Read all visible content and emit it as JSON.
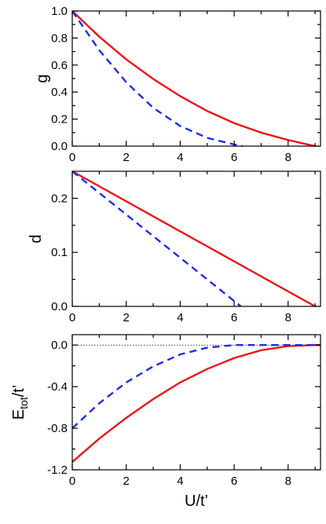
{
  "chart_data": [
    {
      "type": "line",
      "panel": "top",
      "xlabel": "",
      "ylabel": "g",
      "xlim": [
        0,
        9.2
      ],
      "ylim": [
        0,
        1.0
      ],
      "xticks": [
        0,
        2,
        4,
        6,
        8
      ],
      "xtick_labels": [
        "0",
        "2",
        "4",
        "6",
        "8"
      ],
      "yticks": [
        0,
        0.2,
        0.4,
        0.6,
        0.8,
        1.0
      ],
      "ytick_labels": [
        "0.0",
        "0.2",
        "0.4",
        "0.6",
        "0.8",
        "1.0"
      ],
      "legend": "none",
      "series": [
        {
          "color": "#e8141c",
          "style": "solid",
          "x": [
            0,
            1,
            2,
            3,
            4,
            5,
            6,
            7,
            8,
            9
          ],
          "y": [
            1.0,
            0.81,
            0.642,
            0.497,
            0.37,
            0.26,
            0.17,
            0.1,
            0.045,
            0.0
          ]
        },
        {
          "color": "#1c2ee0",
          "style": "dashed",
          "x": [
            0,
            1,
            2,
            3,
            4,
            5,
            6,
            6.3
          ],
          "y": [
            1.0,
            0.71,
            0.473,
            0.283,
            0.149,
            0.061,
            0.012,
            0.0
          ]
        }
      ]
    },
    {
      "type": "line",
      "panel": "middle",
      "xlabel": "",
      "ylabel": "d",
      "xlim": [
        0,
        9.2
      ],
      "ylim": [
        0,
        0.25
      ],
      "xticks": [
        0,
        2,
        4,
        6,
        8
      ],
      "xtick_labels": [
        "0",
        "2",
        "4",
        "6",
        "8"
      ],
      "yticks": [
        0,
        0.1,
        0.2
      ],
      "ytick_labels": [
        "0.0",
        "0.1",
        "0.2"
      ],
      "legend": "none",
      "series": [
        {
          "color": "#e8141c",
          "style": "solid",
          "x": [
            0,
            9.0
          ],
          "y": [
            0.25,
            0.0
          ]
        },
        {
          "color": "#1c2ee0",
          "style": "dashed",
          "x": [
            0,
            6.25
          ],
          "y": [
            0.25,
            0.0
          ]
        }
      ]
    },
    {
      "type": "line",
      "panel": "bottom",
      "xlabel": "U/t’",
      "ylabel": "E",
      "ylabel_sub": "tot",
      "ylabel_tail": "/t’",
      "xlim": [
        0,
        9.2
      ],
      "ylim": [
        -1.2,
        0.1
      ],
      "xticks": [
        0,
        2,
        4,
        6,
        8
      ],
      "xtick_labels": [
        "0",
        "2",
        "4",
        "6",
        "8"
      ],
      "yticks": [
        -1.2,
        -0.8,
        -0.4,
        0.0
      ],
      "ytick_labels": [
        "-1.2",
        "-0.8",
        "-0.4",
        "0.0"
      ],
      "reference_line_y": 0.0,
      "legend": "none",
      "series": [
        {
          "color": "#e8141c",
          "style": "solid",
          "x": [
            0,
            1,
            2,
            3,
            4,
            5,
            6,
            7,
            8,
            9,
            9.2
          ],
          "y": [
            -1.125,
            -0.9,
            -0.7,
            -0.52,
            -0.36,
            -0.23,
            -0.125,
            -0.05,
            -0.01,
            0.0,
            0.0
          ]
        },
        {
          "color": "#1c2ee0",
          "style": "dashed",
          "x": [
            0,
            1,
            2,
            3,
            4,
            5,
            6,
            7,
            8,
            9,
            9.2
          ],
          "y": [
            -0.8,
            -0.56,
            -0.36,
            -0.205,
            -0.09,
            -0.025,
            0.0,
            0.0,
            0.0,
            0.0,
            0.0
          ]
        }
      ]
    }
  ]
}
